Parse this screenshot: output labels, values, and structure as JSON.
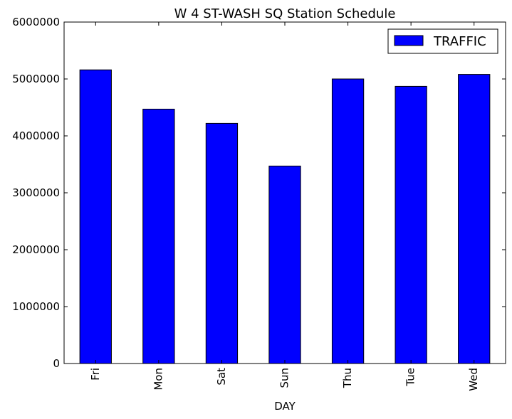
{
  "chart_data": {
    "type": "bar",
    "title": "W 4 ST-WASH SQ Station Schedule",
    "xlabel": "DAY",
    "ylabel": "",
    "categories": [
      "Fri",
      "Mon",
      "Sat",
      "Sun",
      "Thu",
      "Tue",
      "Wed"
    ],
    "series": [
      {
        "name": "TRAFFIC",
        "color": "#0000ff",
        "values": [
          5160000,
          4470000,
          4220000,
          3470000,
          5000000,
          4870000,
          5080000
        ]
      }
    ],
    "ylim": [
      0,
      6000000
    ],
    "yticks": [
      "0",
      "1000000",
      "2000000",
      "3000000",
      "4000000",
      "5000000",
      "6000000"
    ],
    "grid": false,
    "legend_position": "top-right"
  }
}
